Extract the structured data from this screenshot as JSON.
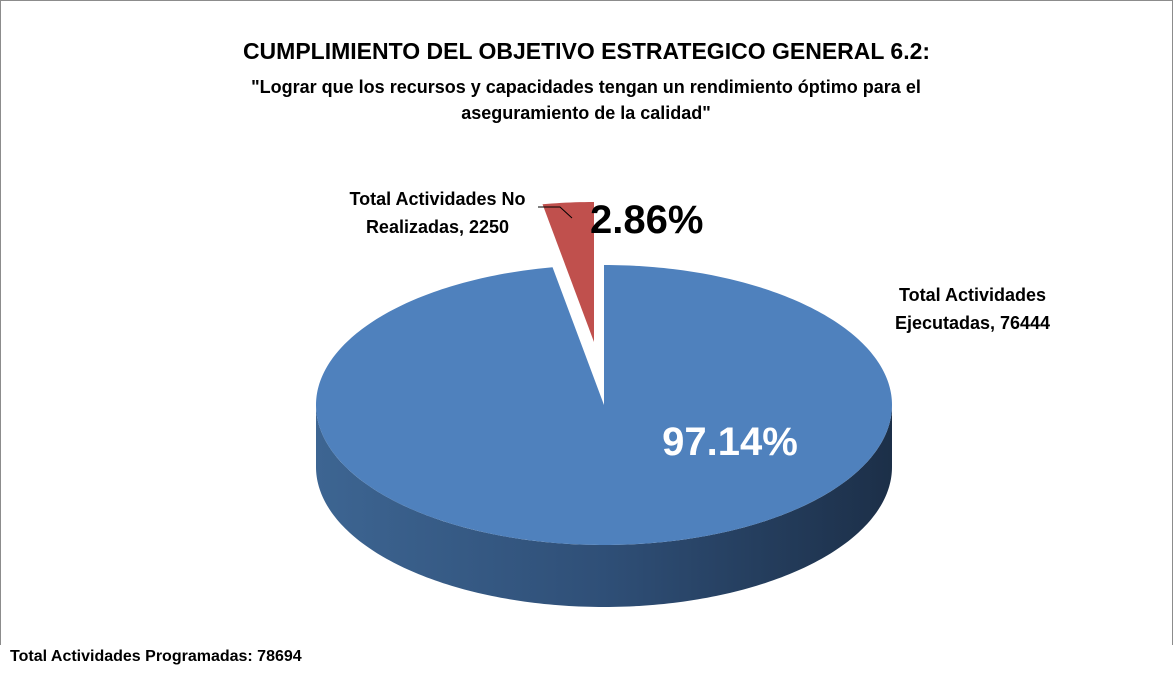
{
  "chart_data": {
    "type": "pie3d",
    "title": "CUMPLIMIENTO DEL OBJETIVO ESTRATEGICO GENERAL 6.2:",
    "subtitle": "\"Lograr que los recursos y capacidades tengan un rendimiento óptimo para el aseguramiento de la calidad\"",
    "categories": [
      "Total Actividades Ejecutadas",
      "Total Actividades No Realizadas"
    ],
    "values": [
      76444,
      2250
    ],
    "data_labels": [
      "Total Actividades Ejecutadas, 76444",
      "Total Actividades No Realizadas, 2250"
    ],
    "percent_labels": [
      "97.14%",
      "2.86%"
    ],
    "colors": [
      "#4f81bd",
      "#c0504d"
    ],
    "footnote": "Total Actividades Programadas: 78694"
  }
}
